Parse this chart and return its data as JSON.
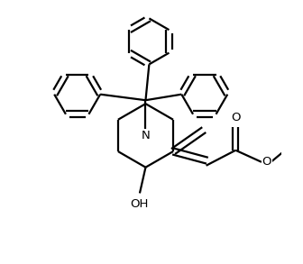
{
  "bg_color": "#ffffff",
  "line_color": "#000000",
  "line_width": 1.6,
  "fig_width": 3.36,
  "fig_height": 2.93,
  "dpi": 100,
  "xlim": [
    -1.05,
    1.15
  ],
  "ylim": [
    -0.95,
    1.25
  ]
}
